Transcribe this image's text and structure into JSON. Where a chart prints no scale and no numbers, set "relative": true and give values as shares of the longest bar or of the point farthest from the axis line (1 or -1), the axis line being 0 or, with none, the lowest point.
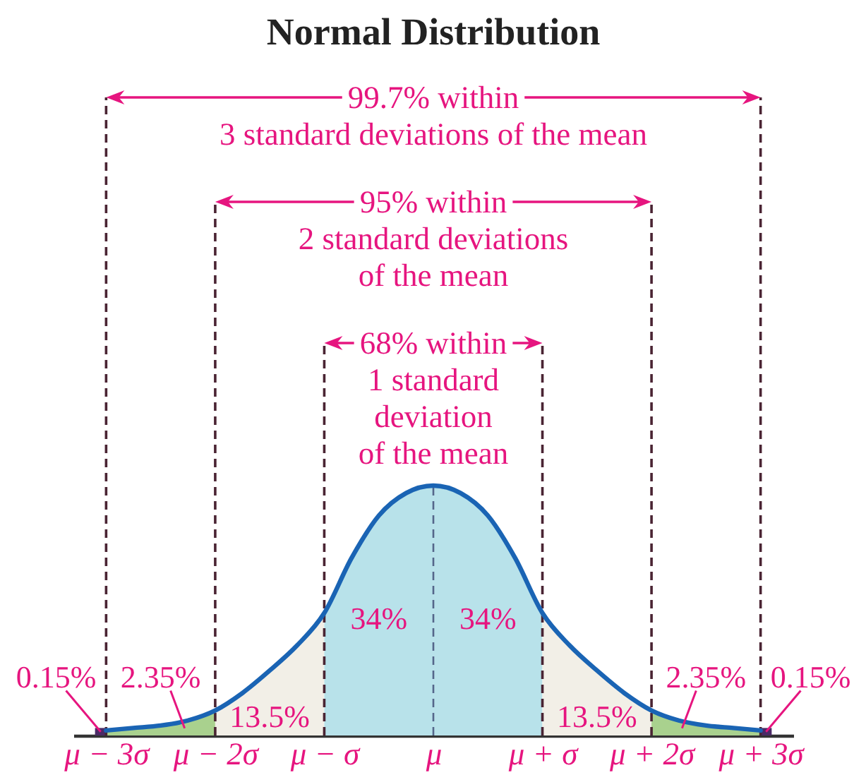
{
  "chart_data": {
    "type": "area",
    "title": "Normal Distribution",
    "relative": true,
    "xlim": [
      -3.3,
      3.3
    ],
    "xticks": [
      {
        "value": -3,
        "label": "μ − 3σ"
      },
      {
        "value": -2,
        "label": "μ − 2σ"
      },
      {
        "value": -1,
        "label": "μ − σ"
      },
      {
        "value": 0,
        "label": "μ"
      },
      {
        "value": 1,
        "label": "μ + σ"
      },
      {
        "value": 2,
        "label": "μ + 2σ"
      },
      {
        "value": 3,
        "label": "μ + 3σ"
      }
    ],
    "series": [
      {
        "type": "bar",
        "color": "#4b2a66",
        "x": [
          -3.05,
          3.05
        ],
        "values": [
          0.03,
          0.03
        ]
      },
      {
        "color": "#a9d18e",
        "x": [
          -3,
          -2.75,
          -2.5,
          -2.25,
          -2
        ],
        "values": [
          0.02,
          0.03,
          0.04,
          0.06,
          0.1
        ]
      },
      {
        "color": "#f2efe7",
        "x": [
          -2,
          -1.75,
          -1.5,
          -1.25,
          -1
        ],
        "values": [
          0.1,
          0.17,
          0.26,
          0.36,
          0.49
        ]
      },
      {
        "color": "#b8e2ea",
        "x": [
          -1,
          -0.75,
          -0.5,
          -0.25,
          0,
          0.25,
          0.5,
          0.75,
          1
        ],
        "values": [
          0.49,
          0.71,
          0.88,
          0.97,
          1,
          0.97,
          0.88,
          0.71,
          0.49
        ]
      },
      {
        "color": "#f2efe7",
        "x": [
          1,
          1.25,
          1.5,
          1.75,
          2
        ],
        "values": [
          0.49,
          0.36,
          0.26,
          0.17,
          0.1
        ]
      },
      {
        "color": "#a9d18e",
        "x": [
          2,
          2.25,
          2.5,
          2.75,
          3
        ],
        "values": [
          0.1,
          0.06,
          0.04,
          0.03,
          0.02
        ]
      },
      {
        "type": "line",
        "color": "#1a64b4",
        "x": [
          -3,
          -2.75,
          -2.5,
          -2.25,
          -2,
          -1.75,
          -1.5,
          -1.25,
          -1,
          -0.75,
          -0.5,
          -0.25,
          0,
          0.25,
          0.5,
          0.75,
          1,
          1.25,
          1.5,
          1.75,
          2,
          2.25,
          2.5,
          2.75,
          3
        ],
        "values": [
          0.02,
          0.03,
          0.04,
          0.06,
          0.1,
          0.17,
          0.26,
          0.36,
          0.49,
          0.71,
          0.88,
          0.97,
          1,
          0.97,
          0.88,
          0.71,
          0.49,
          0.36,
          0.26,
          0.17,
          0.1,
          0.06,
          0.04,
          0.03,
          0.02
        ]
      }
    ],
    "ref_lines": [
      {
        "axis": "x",
        "value": -3,
        "color": "#4a2433",
        "line_style": "dashed"
      },
      {
        "axis": "x",
        "value": -2,
        "color": "#4a2433",
        "line_style": "dashed"
      },
      {
        "axis": "x",
        "value": -1,
        "color": "#4a2433",
        "line_style": "dashed"
      },
      {
        "axis": "x",
        "value": 0,
        "color": "#55668a",
        "line_style": "dashed"
      },
      {
        "axis": "x",
        "value": 1,
        "color": "#4a2433",
        "line_style": "dashed"
      },
      {
        "axis": "x",
        "value": 2,
        "color": "#4a2433",
        "line_style": "dashed"
      },
      {
        "axis": "x",
        "value": 3,
        "color": "#4a2433",
        "line_style": "dashed"
      }
    ],
    "annotations": [
      "99.7% within\n3 standard deviations of the mean",
      "95% within\n2 standard deviations\nof the mean",
      "68% within\n1 standard\ndeviation\nof the mean",
      "0.15%",
      "2.35%",
      "13.5%",
      "34%",
      "34%",
      "13.5%",
      "2.35%",
      "0.15%"
    ]
  }
}
